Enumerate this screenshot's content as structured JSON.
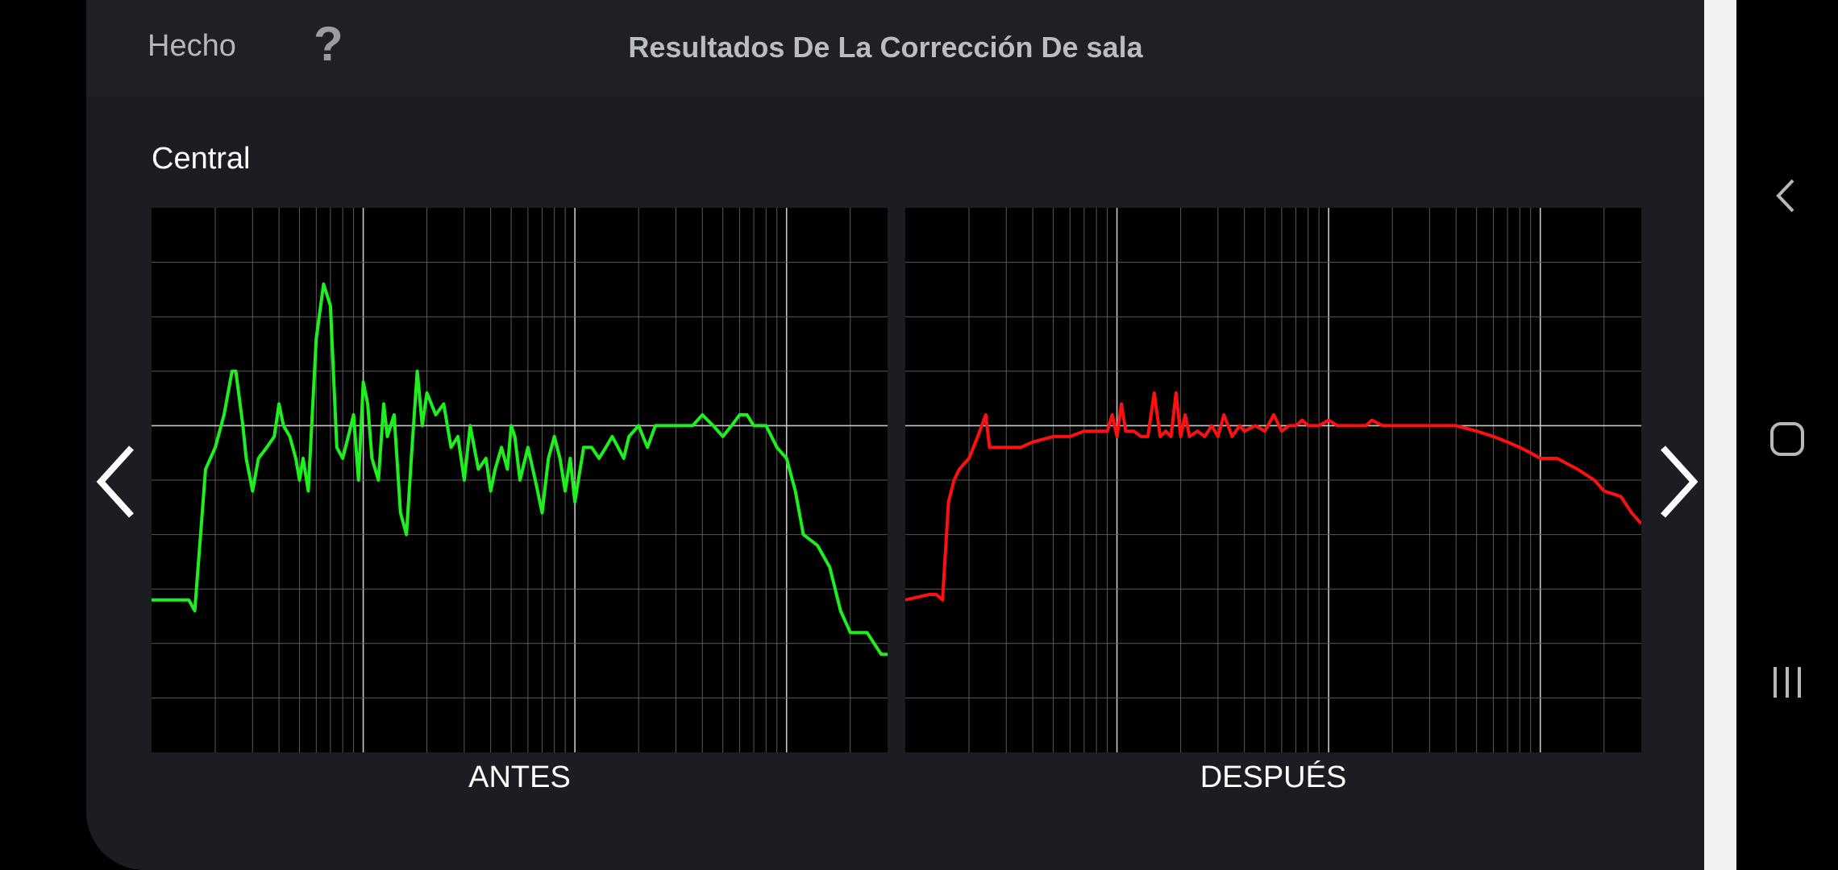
{
  "header": {
    "done_label": "Hecho",
    "help_label": "?",
    "title": "Resultados De La Corrección De sala"
  },
  "channel_name": "Central",
  "graphs": {
    "before_label": "ANTES",
    "after_label": "DESPUÉS"
  },
  "nav": {
    "prev_icon": "chevron-left-icon",
    "next_icon": "chevron-right-icon"
  },
  "system_nav": [
    "back-icon",
    "home-icon",
    "recents-icon"
  ],
  "colors": {
    "before_curve": "#1ef01e",
    "after_curve": "#ff1010",
    "grid": "#5a5a5a",
    "grid_major": "#c8c8c8",
    "panel_bg": "#1b1d22"
  },
  "chart_data": [
    {
      "type": "line",
      "title": "ANTES",
      "xlabel": "",
      "ylabel": "",
      "xscale": "log",
      "xlim": [
        10,
        30000
      ],
      "ylim": [
        -30,
        20
      ],
      "grid": true,
      "series": [
        {
          "color": "#1ef01e",
          "x": [
            10,
            14,
            15,
            16,
            18,
            20,
            22,
            24,
            25,
            27,
            28,
            30,
            32,
            35,
            38,
            40,
            42,
            45,
            48,
            50,
            52,
            55,
            60,
            65,
            70,
            75,
            80,
            85,
            90,
            95,
            100,
            105,
            110,
            118,
            125,
            130,
            140,
            150,
            160,
            170,
            180,
            190,
            200,
            220,
            240,
            260,
            280,
            300,
            320,
            350,
            380,
            400,
            420,
            450,
            480,
            500,
            520,
            550,
            600,
            650,
            700,
            750,
            800,
            850,
            900,
            950,
            1000,
            1100,
            1200,
            1300,
            1400,
            1500,
            1600,
            1700,
            1800,
            2000,
            2200,
            2400,
            2600,
            2800,
            3000,
            3300,
            3600,
            4000,
            4500,
            5000,
            5500,
            6000,
            6500,
            7000,
            7500,
            8000,
            9000,
            10000,
            11000,
            12000,
            14000,
            16000,
            18000,
            20000,
            24000,
            28000,
            30000
          ],
          "y": [
            -16,
            -16,
            -16,
            -17,
            -4,
            -2,
            1,
            5,
            5,
            0,
            -3,
            -6,
            -3,
            -2,
            -1,
            2,
            0,
            -1,
            -3,
            -5,
            -3,
            -6,
            8,
            13,
            11,
            -2,
            -3,
            -1,
            1,
            -5,
            4,
            2,
            -3,
            -5,
            2,
            -1,
            1,
            -8,
            -10,
            -2,
            5,
            0,
            3,
            1,
            2,
            -2,
            -1,
            -5,
            0,
            -4,
            -3,
            -6,
            -4,
            -2,
            -4,
            0,
            -1,
            -5,
            -2,
            -5,
            -8,
            -3,
            -1,
            -3,
            -6,
            -3,
            -7,
            -2,
            -2,
            -3,
            -2,
            -1,
            -2,
            -3,
            -1,
            0,
            -2,
            0,
            0,
            0,
            0,
            0,
            0,
            1,
            0,
            -1,
            0,
            1,
            1,
            0,
            0,
            0,
            -2,
            -3,
            -6,
            -10,
            -11,
            -13,
            -17,
            -19,
            -19,
            -21,
            -21
          ]
        }
      ]
    },
    {
      "type": "line",
      "title": "DESPUÉS",
      "xlabel": "",
      "ylabel": "",
      "xscale": "log",
      "xlim": [
        10,
        30000
      ],
      "ylim": [
        -30,
        20
      ],
      "grid": true,
      "series": [
        {
          "color": "#ff1010",
          "x": [
            10,
            13,
            14,
            15,
            16,
            17,
            18,
            20,
            22,
            24,
            25,
            27,
            30,
            35,
            40,
            50,
            60,
            70,
            80,
            90,
            95,
            100,
            105,
            110,
            120,
            130,
            140,
            150,
            160,
            170,
            180,
            190,
            200,
            210,
            220,
            240,
            260,
            280,
            300,
            320,
            350,
            380,
            400,
            450,
            500,
            550,
            600,
            650,
            700,
            750,
            800,
            900,
            1000,
            1100,
            1200,
            1300,
            1400,
            1500,
            1600,
            1800,
            2000,
            2200,
            2500,
            3000,
            3500,
            4000,
            5000,
            6000,
            7000,
            8000,
            9000,
            10000,
            12000,
            15000,
            18000,
            20000,
            24000,
            27000,
            30000
          ],
          "y": [
            -16,
            -15.5,
            -15.5,
            -16,
            -7,
            -5,
            -4,
            -3,
            -1,
            1,
            -2,
            -2,
            -2,
            -2,
            -1.5,
            -1,
            -1,
            -0.5,
            -0.5,
            -0.5,
            1,
            -1,
            2,
            -0.5,
            -0.5,
            -1,
            -1,
            3,
            -1,
            -0.5,
            -1,
            3,
            -1,
            1,
            -1,
            -0.5,
            -1,
            0,
            -1,
            1,
            -1,
            0,
            -0.5,
            0,
            -0.5,
            1,
            -0.5,
            0,
            0,
            0.5,
            0,
            0,
            0.5,
            0,
            0,
            0,
            0,
            0,
            0.5,
            0,
            0,
            0,
            0,
            0,
            0,
            0,
            -0.5,
            -1,
            -1.5,
            -2,
            -2.5,
            -3,
            -3,
            -4,
            -5,
            -6,
            -6.5,
            -8,
            -9
          ]
        }
      ]
    }
  ]
}
